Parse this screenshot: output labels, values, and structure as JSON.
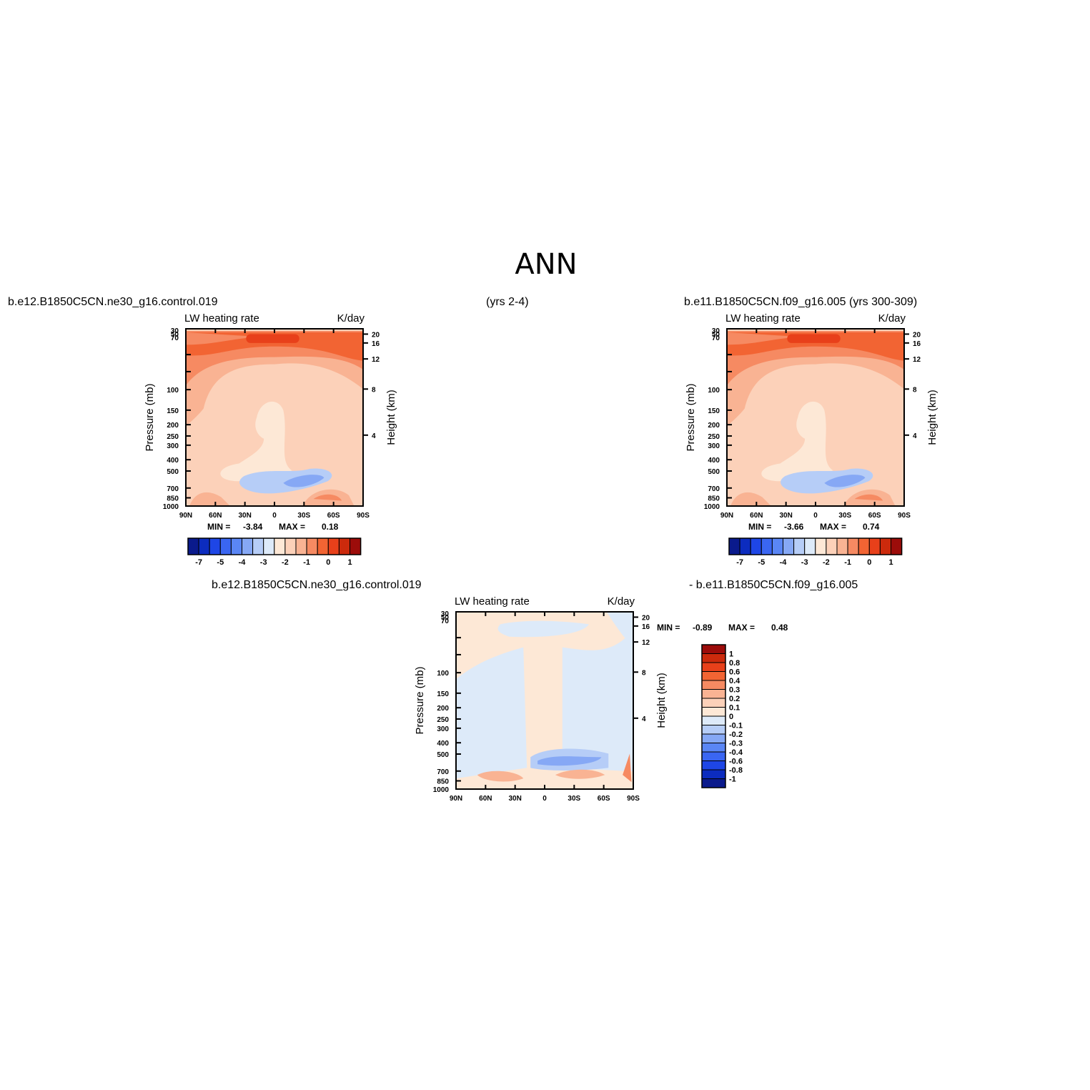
{
  "page": {
    "title": "ANN",
    "case1_label": "b.e12.B1850C5CN.ne30_g16.control.019",
    "case1_years": "(yrs 2-4)",
    "case2_label": "b.e11.B1850C5CN.f09_g16.005 (yrs 300-309)",
    "diff_label_left": "b.e12.B1850C5CN.ne30_g16.control.019",
    "diff_label_right": "- b.e11.B1850C5CN.f09_g16.005"
  },
  "colors": {
    "field_scale": [
      "#0a1a8c",
      "#0c2cbf",
      "#1e46e6",
      "#3a66f2",
      "#5a86f5",
      "#86a8f5",
      "#b6cdf7",
      "#ddeaf9",
      "#fde8d6",
      "#fcd1b9",
      "#f9b393",
      "#f68a62",
      "#f26433",
      "#e8401a",
      "#cc2a0c",
      "#9c0c0a"
    ],
    "diff_scale": [
      "#0a1a8c",
      "#0c2cbf",
      "#1e46e6",
      "#3a66f2",
      "#5a86f5",
      "#86a8f5",
      "#b6cdf7",
      "#ddeaf9",
      "#fde8d6",
      "#fcd1b9",
      "#f9b393",
      "#f68a62",
      "#f26433",
      "#e8401a",
      "#cc2a0c",
      "#9c0c0a"
    ]
  },
  "chart_data": [
    {
      "type": "heatmap",
      "panel": "case1",
      "title_left": "LW heating rate",
      "title_right": "K/day",
      "ylabel": "Pressure (mb)",
      "ylabel_right": "Height (km)",
      "x_ticks": [
        "90N",
        "60N",
        "30N",
        "0",
        "30S",
        "60S",
        "90S"
      ],
      "y_ticks": [
        "30",
        "50",
        "70",
        "100",
        "150",
        "200",
        "250",
        "300",
        "400",
        "500",
        "700",
        "850",
        "1000"
      ],
      "y_ticks_right": [
        "20",
        "16",
        "12",
        "8",
        "4"
      ],
      "ylim": [
        1000,
        30
      ],
      "stats_min_label": "MIN =",
      "stats_min": "-3.84",
      "stats_max_label": "MAX =",
      "stats_max": "0.18",
      "levels": [
        "-7",
        "-5",
        "-4",
        "-3",
        "-2",
        "-1",
        "0",
        "1"
      ]
    },
    {
      "type": "heatmap",
      "panel": "case2",
      "title_left": "LW heating rate",
      "title_right": "K/day",
      "ylabel": "Pressure (mb)",
      "ylabel_right": "Height (km)",
      "x_ticks": [
        "90N",
        "60N",
        "30N",
        "0",
        "30S",
        "60S",
        "90S"
      ],
      "y_ticks": [
        "30",
        "50",
        "70",
        "100",
        "150",
        "200",
        "250",
        "300",
        "400",
        "500",
        "700",
        "850",
        "1000"
      ],
      "y_ticks_right": [
        "20",
        "16",
        "12",
        "8",
        "4"
      ],
      "ylim": [
        1000,
        30
      ],
      "stats_min_label": "MIN =",
      "stats_min": "-3.66",
      "stats_max_label": "MAX =",
      "stats_max": "0.74",
      "levels": [
        "-7",
        "-5",
        "-4",
        "-3",
        "-2",
        "-1",
        "0",
        "1"
      ]
    },
    {
      "type": "heatmap",
      "panel": "diff",
      "title_left": "LW heating rate",
      "title_right": "K/day",
      "ylabel": "Pressure (mb)",
      "ylabel_right": "Height (km)",
      "x_ticks": [
        "90N",
        "60N",
        "30N",
        "0",
        "30S",
        "60S",
        "90S"
      ],
      "y_ticks": [
        "30",
        "50",
        "70",
        "100",
        "150",
        "200",
        "250",
        "300",
        "400",
        "500",
        "700",
        "850",
        "1000"
      ],
      "y_ticks_right": [
        "20",
        "16",
        "12",
        "8",
        "4"
      ],
      "ylim": [
        1000,
        30
      ],
      "stats_min_label": "MIN =",
      "stats_min": "-0.89",
      "stats_max_label": "MAX =",
      "stats_max": "0.48",
      "levels": [
        "1",
        "0.8",
        "0.6",
        "0.4",
        "0.3",
        "0.2",
        "0.1",
        "0",
        "-0.1",
        "-0.2",
        "-0.3",
        "-0.4",
        "-0.6",
        "-0.8",
        "-1"
      ]
    }
  ]
}
